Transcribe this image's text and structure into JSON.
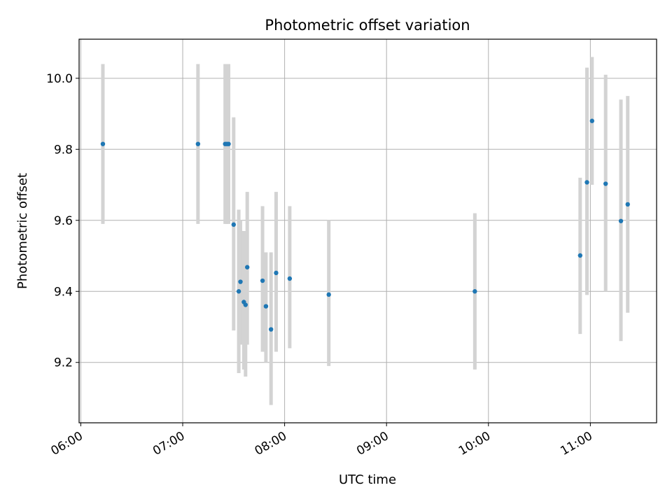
{
  "chart_data": {
    "type": "scatter",
    "title": "Photometric offset variation",
    "xlabel": "UTC time",
    "ylabel": "Photometric offset",
    "xlim": [
      "05:59",
      "11:39"
    ],
    "ylim": [
      9.03,
      10.11
    ],
    "x_ticks": [
      "06:00",
      "07:00",
      "08:00",
      "09:00",
      "10:00",
      "11:00"
    ],
    "y_ticks": [
      9.2,
      9.4,
      9.6,
      9.8,
      10.0
    ],
    "y_tick_labels": [
      "9.2",
      "9.4",
      "9.6",
      "9.8",
      "10.0"
    ],
    "grid": true,
    "point_color": "#1f77b4",
    "errorbar_color": "#d3d3d3",
    "points": [
      {
        "x": "06:13",
        "y": 9.815,
        "lo": 9.59,
        "hi": 10.04
      },
      {
        "x": "07:09",
        "y": 9.815,
        "lo": 9.59,
        "hi": 10.04
      },
      {
        "x": "07:25",
        "y": 9.815,
        "lo": 9.59,
        "hi": 10.04
      },
      {
        "x": "07:26",
        "y": 9.815,
        "lo": 9.59,
        "hi": 10.04
      },
      {
        "x": "07:27",
        "y": 9.815,
        "lo": 9.59,
        "hi": 10.04
      },
      {
        "x": "07:30",
        "y": 9.588,
        "lo": 9.29,
        "hi": 9.89
      },
      {
        "x": "07:33",
        "y": 9.4,
        "lo": 9.17,
        "hi": 9.63
      },
      {
        "x": "07:34",
        "y": 9.427,
        "lo": 9.25,
        "hi": 9.6
      },
      {
        "x": "07:36",
        "y": 9.37,
        "lo": 9.18,
        "hi": 9.57
      },
      {
        "x": "07:37",
        "y": 9.362,
        "lo": 9.16,
        "hi": 9.57
      },
      {
        "x": "07:38",
        "y": 9.468,
        "lo": 9.25,
        "hi": 9.68
      },
      {
        "x": "07:47",
        "y": 9.43,
        "lo": 9.23,
        "hi": 9.64
      },
      {
        "x": "07:49",
        "y": 9.358,
        "lo": 9.2,
        "hi": 9.51
      },
      {
        "x": "07:52",
        "y": 9.293,
        "lo": 9.08,
        "hi": 9.51
      },
      {
        "x": "07:55",
        "y": 9.452,
        "lo": 9.23,
        "hi": 9.68
      },
      {
        "x": "08:03",
        "y": 9.436,
        "lo": 9.24,
        "hi": 9.64
      },
      {
        "x": "08:26",
        "y": 9.391,
        "lo": 9.19,
        "hi": 9.6
      },
      {
        "x": "09:52",
        "y": 9.4,
        "lo": 9.18,
        "hi": 9.62
      },
      {
        "x": "10:54",
        "y": 9.501,
        "lo": 9.28,
        "hi": 9.72
      },
      {
        "x": "10:58",
        "y": 9.707,
        "lo": 9.39,
        "hi": 10.03
      },
      {
        "x": "11:01",
        "y": 9.88,
        "lo": 9.7,
        "hi": 10.06
      },
      {
        "x": "11:09",
        "y": 9.703,
        "lo": 9.4,
        "hi": 10.01
      },
      {
        "x": "11:18",
        "y": 9.598,
        "lo": 9.26,
        "hi": 9.94
      },
      {
        "x": "11:22",
        "y": 9.645,
        "lo": 9.34,
        "hi": 9.95
      }
    ]
  }
}
